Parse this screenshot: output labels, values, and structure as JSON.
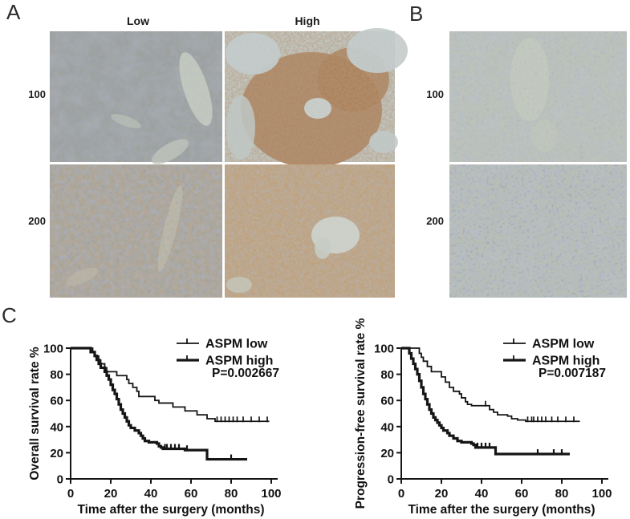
{
  "panels": {
    "a": {
      "label": "A",
      "col_headers": [
        "Low",
        "High"
      ],
      "row_labels": [
        "100",
        "200"
      ]
    },
    "b": {
      "label": "B",
      "row_labels": [
        "100",
        "200"
      ]
    },
    "c": {
      "label": "C"
    }
  },
  "chart_data": [
    {
      "type": "line",
      "subtype": "kaplan-meier-step",
      "ylabel": "Overall survival rate %",
      "xlabel": "Time after the surgery (months)",
      "p_value": "P=0.002667",
      "xlim": [
        0,
        100
      ],
      "ylim": [
        0,
        100
      ],
      "xticks": [
        0,
        20,
        40,
        60,
        80,
        100
      ],
      "yticks": [
        0,
        20,
        40,
        60,
        80,
        100
      ],
      "legend_position": "top-right",
      "line_color": "#151515",
      "series": [
        {
          "name": "ASPM low",
          "style": "thin",
          "points": [
            [
              0,
              100
            ],
            [
              9,
              100
            ],
            [
              11,
              97
            ],
            [
              12,
              94
            ],
            [
              14,
              91
            ],
            [
              15,
              88
            ],
            [
              17,
              85
            ],
            [
              18,
              82
            ],
            [
              22,
              82
            ],
            [
              23,
              79
            ],
            [
              27,
              79
            ],
            [
              28,
              76
            ],
            [
              29,
              73
            ],
            [
              31,
              70
            ],
            [
              33,
              67
            ],
            [
              34,
              63
            ],
            [
              41,
              63
            ],
            [
              42,
              60
            ],
            [
              44,
              58
            ],
            [
              50,
              58
            ],
            [
              51,
              55
            ],
            [
              56,
              55
            ],
            [
              57,
              52
            ],
            [
              62,
              52
            ],
            [
              63,
              49
            ],
            [
              67,
              49
            ],
            [
              68,
              46
            ],
            [
              71,
              46
            ],
            [
              72,
              44
            ],
            [
              99,
              44
            ]
          ],
          "censored_x": [
            73,
            75,
            77,
            79,
            81,
            83,
            86,
            90,
            94,
            98
          ]
        },
        {
          "name": "ASPM high",
          "style": "thick",
          "points": [
            [
              0,
              100
            ],
            [
              9,
              100
            ],
            [
              10,
              97
            ],
            [
              12,
              94
            ],
            [
              13,
              91
            ],
            [
              14,
              88
            ],
            [
              15,
              85
            ],
            [
              17,
              82
            ],
            [
              18,
              79
            ],
            [
              19,
              76
            ],
            [
              20,
              72
            ],
            [
              21,
              68
            ],
            [
              22,
              65
            ],
            [
              23,
              61
            ],
            [
              24,
              57
            ],
            [
              25,
              53
            ],
            [
              26,
              50
            ],
            [
              27,
              47
            ],
            [
              28,
              44
            ],
            [
              29,
              41
            ],
            [
              30,
              39
            ],
            [
              32,
              37
            ],
            [
              34,
              35
            ],
            [
              35,
              33
            ],
            [
              36,
              31
            ],
            [
              37,
              29
            ],
            [
              39,
              28
            ],
            [
              43,
              27
            ],
            [
              44,
              25
            ],
            [
              45,
              24
            ],
            [
              46,
              23
            ],
            [
              56,
              23
            ],
            [
              57,
              22
            ],
            [
              67,
              22
            ],
            [
              68,
              15
            ],
            [
              88,
              15
            ]
          ],
          "censored_x": [
            47,
            48,
            50,
            52,
            54,
            58,
            80
          ]
        }
      ]
    },
    {
      "type": "line",
      "subtype": "kaplan-meier-step",
      "ylabel": "Progression-free survival rate %",
      "xlabel": "Time after the surgery (months)",
      "p_value": "P=0.007187",
      "xlim": [
        0,
        100
      ],
      "ylim": [
        0,
        100
      ],
      "xticks": [
        0,
        20,
        40,
        60,
        80,
        100
      ],
      "yticks": [
        0,
        20,
        40,
        60,
        80,
        100
      ],
      "legend_position": "top-right",
      "line_color": "#151515",
      "series": [
        {
          "name": "ASPM low",
          "style": "thin",
          "points": [
            [
              0,
              100
            ],
            [
              8,
              100
            ],
            [
              9,
              96
            ],
            [
              10,
              93
            ],
            [
              11,
              90
            ],
            [
              13,
              86
            ],
            [
              15,
              82
            ],
            [
              19,
              82
            ],
            [
              20,
              78
            ],
            [
              22,
              74
            ],
            [
              24,
              70
            ],
            [
              26,
              67
            ],
            [
              29,
              65
            ],
            [
              30,
              62
            ],
            [
              32,
              59
            ],
            [
              33,
              57
            ],
            [
              35,
              56
            ],
            [
              43,
              56
            ],
            [
              44,
              53
            ],
            [
              46,
              51
            ],
            [
              48,
              49
            ],
            [
              53,
              48
            ],
            [
              55,
              46
            ],
            [
              58,
              45
            ],
            [
              62,
              44
            ],
            [
              89,
              44
            ]
          ],
          "censored_x": [
            42,
            63,
            65,
            66,
            68,
            70,
            72,
            75,
            78,
            82,
            86
          ]
        },
        {
          "name": "ASPM high",
          "style": "thick",
          "points": [
            [
              0,
              100
            ],
            [
              3,
              100
            ],
            [
              4,
              96
            ],
            [
              5,
              92
            ],
            [
              6,
              88
            ],
            [
              7,
              84
            ],
            [
              8,
              80
            ],
            [
              9,
              75
            ],
            [
              10,
              70
            ],
            [
              11,
              65
            ],
            [
              12,
              61
            ],
            [
              13,
              57
            ],
            [
              14,
              53
            ],
            [
              15,
              50
            ],
            [
              16,
              47
            ],
            [
              17,
              45
            ],
            [
              18,
              43
            ],
            [
              19,
              41
            ],
            [
              20,
              39
            ],
            [
              21,
              37
            ],
            [
              23,
              35
            ],
            [
              24,
              33
            ],
            [
              26,
              31
            ],
            [
              28,
              29
            ],
            [
              30,
              28
            ],
            [
              34,
              28
            ],
            [
              35,
              27
            ],
            [
              36,
              26
            ],
            [
              37,
              24
            ],
            [
              46,
              24
            ],
            [
              47,
              19
            ],
            [
              84,
              19
            ]
          ],
          "censored_x": [
            38,
            40,
            42,
            44,
            68,
            76,
            80
          ]
        }
      ]
    }
  ]
}
